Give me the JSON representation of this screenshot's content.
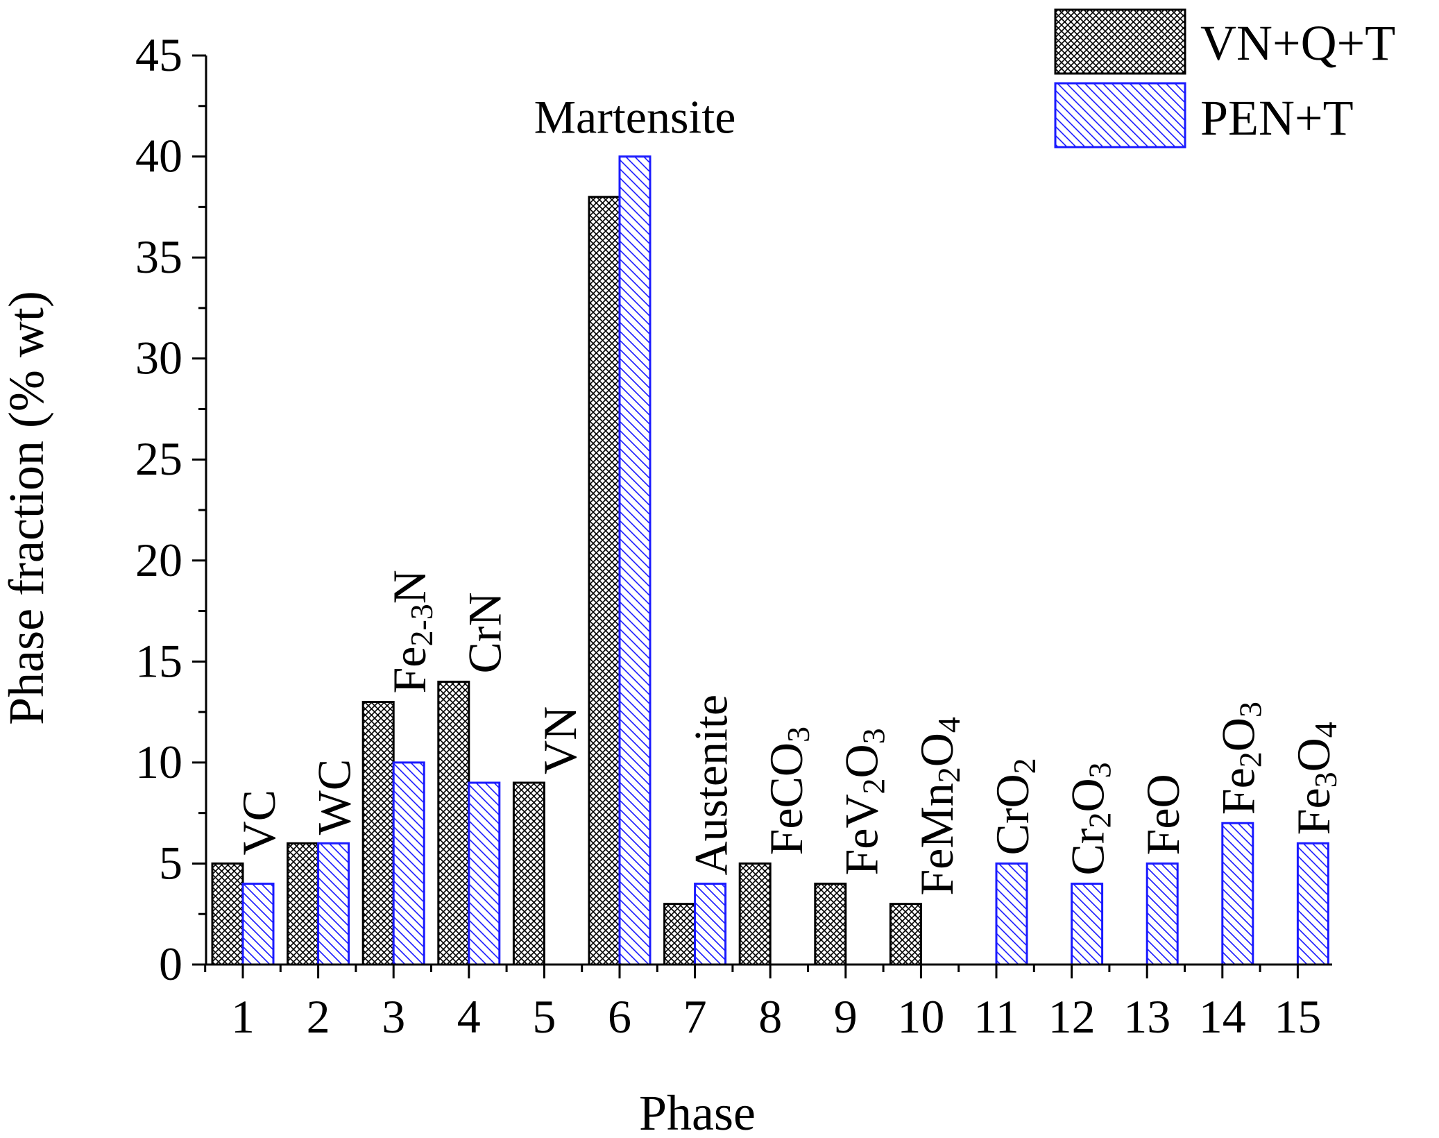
{
  "chart_data": {
    "type": "bar",
    "title": "",
    "xlabel": "Phase",
    "ylabel": "Phase fraction (% wt)",
    "ylim": [
      0,
      45
    ],
    "yticks": [
      0,
      5,
      10,
      15,
      20,
      25,
      30,
      35,
      40,
      45
    ],
    "categories": [
      "1",
      "2",
      "3",
      "4",
      "5",
      "6",
      "7",
      "8",
      "9",
      "10",
      "11",
      "12",
      "13",
      "14",
      "15"
    ],
    "series": [
      {
        "name": "VN+Q+T",
        "color": "#000000",
        "pattern": "crosshatch",
        "values": [
          5,
          6,
          13,
          14,
          9,
          38,
          3,
          5,
          4,
          3,
          0,
          0,
          0,
          0,
          0
        ]
      },
      {
        "name": "PEN+T",
        "color": "#1a1aff",
        "pattern": "diagonal",
        "values": [
          4,
          6,
          10,
          9,
          0,
          40,
          4,
          0,
          0,
          0,
          5,
          4,
          5,
          7,
          6
        ]
      }
    ],
    "phase_labels": [
      {
        "category": "1",
        "orientation": "vertical",
        "parts": [
          {
            "t": "VC"
          }
        ]
      },
      {
        "category": "2",
        "orientation": "vertical",
        "parts": [
          {
            "t": "WC"
          }
        ]
      },
      {
        "category": "3",
        "orientation": "vertical",
        "parts": [
          {
            "t": "Fe"
          },
          {
            "t": "2-3",
            "sub": true
          },
          {
            "t": "N"
          }
        ]
      },
      {
        "category": "4",
        "orientation": "vertical",
        "parts": [
          {
            "t": "CrN"
          }
        ]
      },
      {
        "category": "5",
        "orientation": "vertical",
        "parts": [
          {
            "t": "VN"
          }
        ]
      },
      {
        "category": "6",
        "orientation": "horizontal",
        "parts": [
          {
            "t": "Martensite"
          }
        ]
      },
      {
        "category": "7",
        "orientation": "vertical",
        "parts": [
          {
            "t": "Austenite"
          }
        ]
      },
      {
        "category": "8",
        "orientation": "vertical",
        "parts": [
          {
            "t": "FeCO"
          },
          {
            "t": "3",
            "sub": true
          }
        ]
      },
      {
        "category": "9",
        "orientation": "vertical",
        "parts": [
          {
            "t": "FeV"
          },
          {
            "t": "2",
            "sub": true
          },
          {
            "t": "O"
          },
          {
            "t": "3",
            "sub": true
          }
        ]
      },
      {
        "category": "10",
        "orientation": "vertical",
        "parts": [
          {
            "t": "FeMn"
          },
          {
            "t": "2",
            "sub": true
          },
          {
            "t": "O"
          },
          {
            "t": "4",
            "sub": true
          }
        ]
      },
      {
        "category": "11",
        "orientation": "vertical",
        "parts": [
          {
            "t": "CrO"
          },
          {
            "t": "2",
            "sub": true
          }
        ]
      },
      {
        "category": "12",
        "orientation": "vertical",
        "parts": [
          {
            "t": "Cr"
          },
          {
            "t": "2",
            "sub": true
          },
          {
            "t": "O"
          },
          {
            "t": "3",
            "sub": true
          }
        ]
      },
      {
        "category": "13",
        "orientation": "vertical",
        "parts": [
          {
            "t": "FeO"
          }
        ]
      },
      {
        "category": "14",
        "orientation": "vertical",
        "parts": [
          {
            "t": "Fe"
          },
          {
            "t": "2",
            "sub": true
          },
          {
            "t": "O"
          },
          {
            "t": "3",
            "sub": true
          }
        ]
      },
      {
        "category": "15",
        "orientation": "vertical",
        "parts": [
          {
            "t": "Fe"
          },
          {
            "t": "3",
            "sub": true
          },
          {
            "t": "O"
          },
          {
            "t": "4",
            "sub": true
          }
        ]
      }
    ],
    "legend": {
      "position": "top-right"
    },
    "grid": false
  }
}
